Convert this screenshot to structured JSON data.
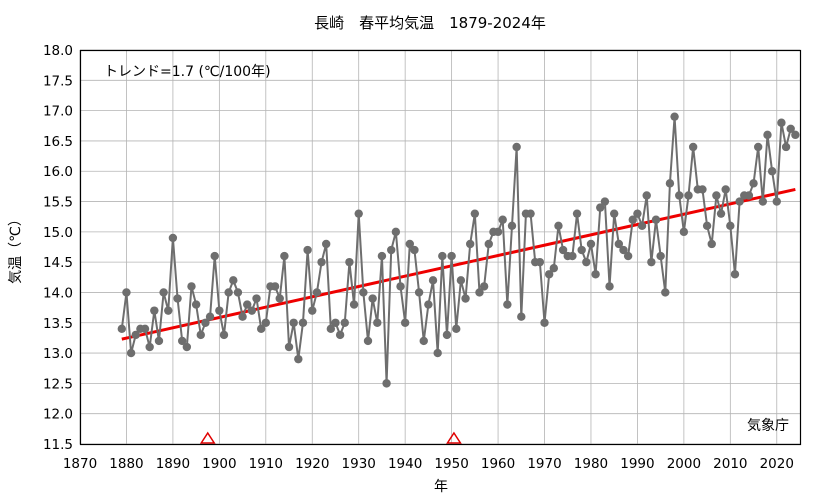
{
  "chart_data": {
    "type": "line",
    "title": "長崎　春平均気温　1879-2024年",
    "xlabel": "年",
    "ylabel": "気温（℃）",
    "xlim": [
      1870,
      2025
    ],
    "ylim": [
      11.5,
      18.0
    ],
    "grid": true,
    "xticks": [
      1870,
      1880,
      1890,
      1900,
      1910,
      1920,
      1930,
      1940,
      1950,
      1960,
      1970,
      1980,
      1990,
      2000,
      2010,
      2020
    ],
    "yticks": [
      11.5,
      12.0,
      12.5,
      13.0,
      13.5,
      14.0,
      14.5,
      15.0,
      15.5,
      16.0,
      16.5,
      17.0,
      17.5,
      18.0
    ],
    "trend_label": "トレンド=1.7 (℃/100年)",
    "source_label": "気象庁",
    "series": [
      {
        "color": "#6e6e6e",
        "x_start": 1879,
        "values": [
          13.4,
          14.0,
          13.0,
          13.3,
          13.4,
          13.4,
          13.1,
          13.7,
          13.2,
          14.0,
          13.7,
          14.9,
          13.9,
          13.2,
          13.1,
          14.1,
          13.8,
          13.3,
          13.5,
          13.6,
          14.6,
          13.7,
          13.3,
          14.0,
          14.2,
          14.0,
          13.6,
          13.8,
          13.7,
          13.9,
          13.4,
          13.5,
          14.1,
          14.1,
          13.9,
          14.6,
          13.1,
          13.5,
          12.9,
          13.5,
          14.7,
          13.7,
          14.0,
          14.5,
          14.8,
          13.4,
          13.5,
          13.3,
          13.5,
          14.5,
          13.8,
          15.3,
          14.0,
          13.2,
          13.9,
          13.5,
          14.6,
          12.5,
          14.7,
          15.0,
          14.1,
          13.5,
          14.8,
          14.7,
          14.0,
          13.2,
          13.8,
          14.2,
          13.0,
          14.6,
          13.3,
          14.6,
          13.4,
          14.2,
          13.9,
          14.8,
          15.3,
          14.0,
          14.1,
          14.8,
          15.0,
          15.0,
          15.2,
          13.8,
          15.1,
          16.4,
          13.6,
          15.3,
          15.3,
          14.5,
          14.5,
          13.5,
          14.3,
          14.4,
          15.1,
          14.7,
          14.6,
          14.6,
          15.3,
          14.7,
          14.5,
          14.8,
          14.3,
          15.4,
          15.5,
          14.1,
          15.3,
          14.8,
          14.7,
          14.6,
          15.2,
          15.3,
          15.1,
          15.6,
          14.5,
          15.2,
          14.6,
          14.0,
          15.8,
          16.9,
          15.6,
          15.0,
          15.6,
          16.4,
          15.7,
          15.7,
          15.1,
          14.8,
          15.6,
          15.3,
          15.7,
          15.1,
          14.3,
          15.5,
          15.6,
          15.6,
          15.8,
          16.4,
          15.5,
          16.6,
          16.0,
          15.5,
          16.8,
          16.4,
          16.7,
          16.6
        ]
      },
      {
        "color": "#ee0000",
        "type": "trend",
        "x": [
          1879,
          2024
        ],
        "values": [
          13.23,
          15.7
        ]
      }
    ],
    "markers": [
      {
        "x": 1897.5,
        "color": "#e00000",
        "shape": "triangle"
      },
      {
        "x": 1950.5,
        "color": "#e00000",
        "shape": "triangle"
      }
    ]
  }
}
